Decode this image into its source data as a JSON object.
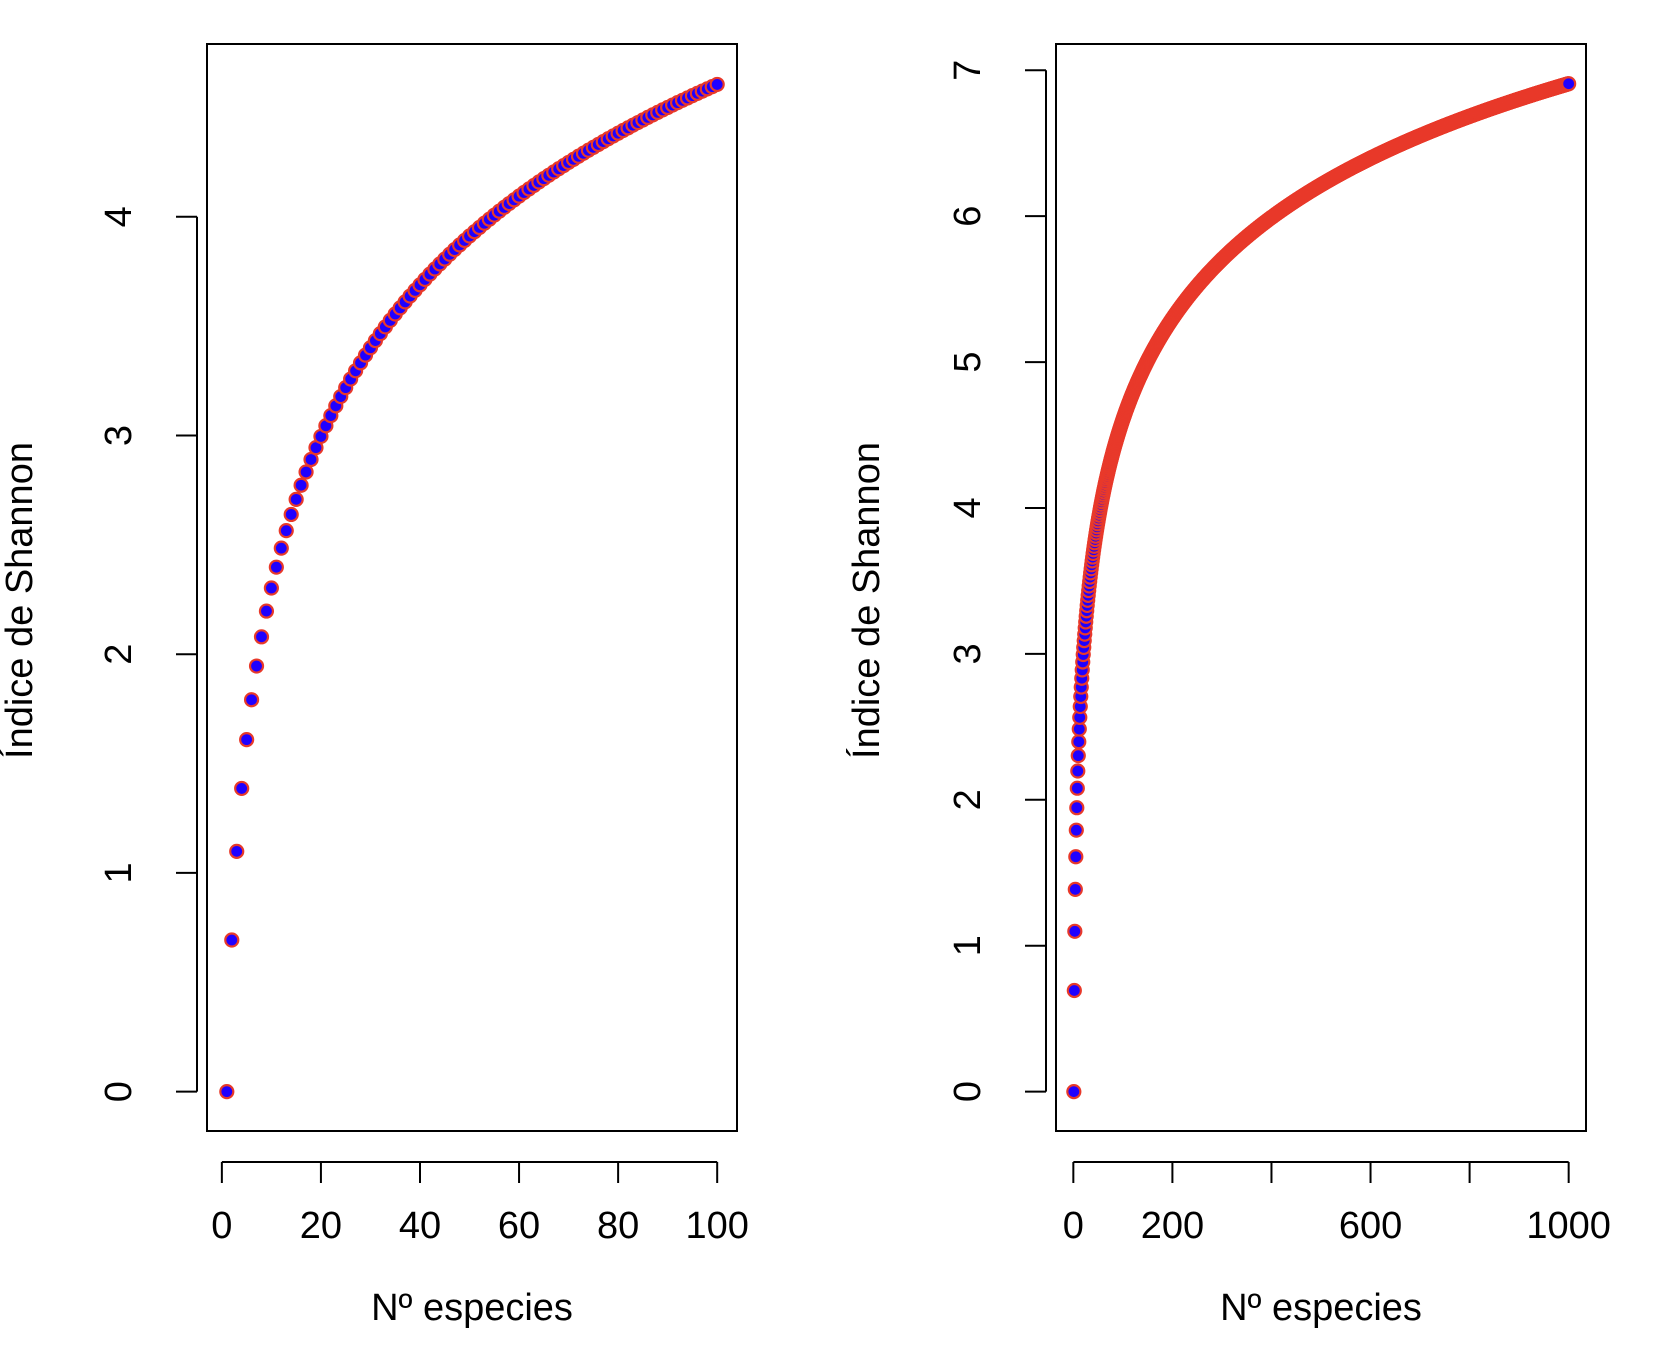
{
  "chart_data": [
    {
      "type": "scatter",
      "title": "",
      "xlabel": "Nº especies",
      "ylabel": "Índice de Shannon",
      "x_range": [
        1,
        100
      ],
      "xlim": [
        -3,
        104
      ],
      "ylim": [
        -0.18,
        4.79
      ],
      "x_ticks": [
        0,
        20,
        40,
        60,
        80,
        100
      ],
      "x_tick_labels": [
        "0",
        "20",
        "40",
        "60",
        "80",
        "100"
      ],
      "y_ticks": [
        0,
        1,
        2,
        3,
        4
      ],
      "y_tick_labels": [
        "0",
        "1",
        "2",
        "3",
        "4"
      ],
      "series": [
        {
          "formula": "y = ln(x)",
          "x_from": 1,
          "x_to": 100,
          "x_step": 1,
          "marker_fill": "#1f00ff",
          "marker_edge": "#e8392a"
        }
      ],
      "grid": false,
      "legend": "none"
    },
    {
      "type": "scatter",
      "title": "",
      "xlabel": "Nº especies",
      "ylabel": "Índice de Shannon",
      "x_range": [
        1,
        1000
      ],
      "xlim": [
        -35,
        1035
      ],
      "ylim": [
        -0.27,
        7.18
      ],
      "x_ticks": [
        0,
        200,
        400,
        600,
        800,
        1000
      ],
      "x_tick_labels": [
        "0",
        "200",
        "",
        "600",
        "",
        "1000"
      ],
      "y_ticks": [
        0,
        1,
        2,
        3,
        4,
        5,
        6,
        7
      ],
      "y_tick_labels": [
        "0",
        "1",
        "2",
        "3",
        "4",
        "5",
        "6",
        "7"
      ],
      "series": [
        {
          "formula": "y = ln(x)",
          "x_from": 1,
          "x_to": 1000,
          "x_step": 1,
          "marker_fill": "#1f00ff",
          "marker_edge": "#e8392a"
        }
      ],
      "grid": false,
      "legend": "none"
    }
  ]
}
